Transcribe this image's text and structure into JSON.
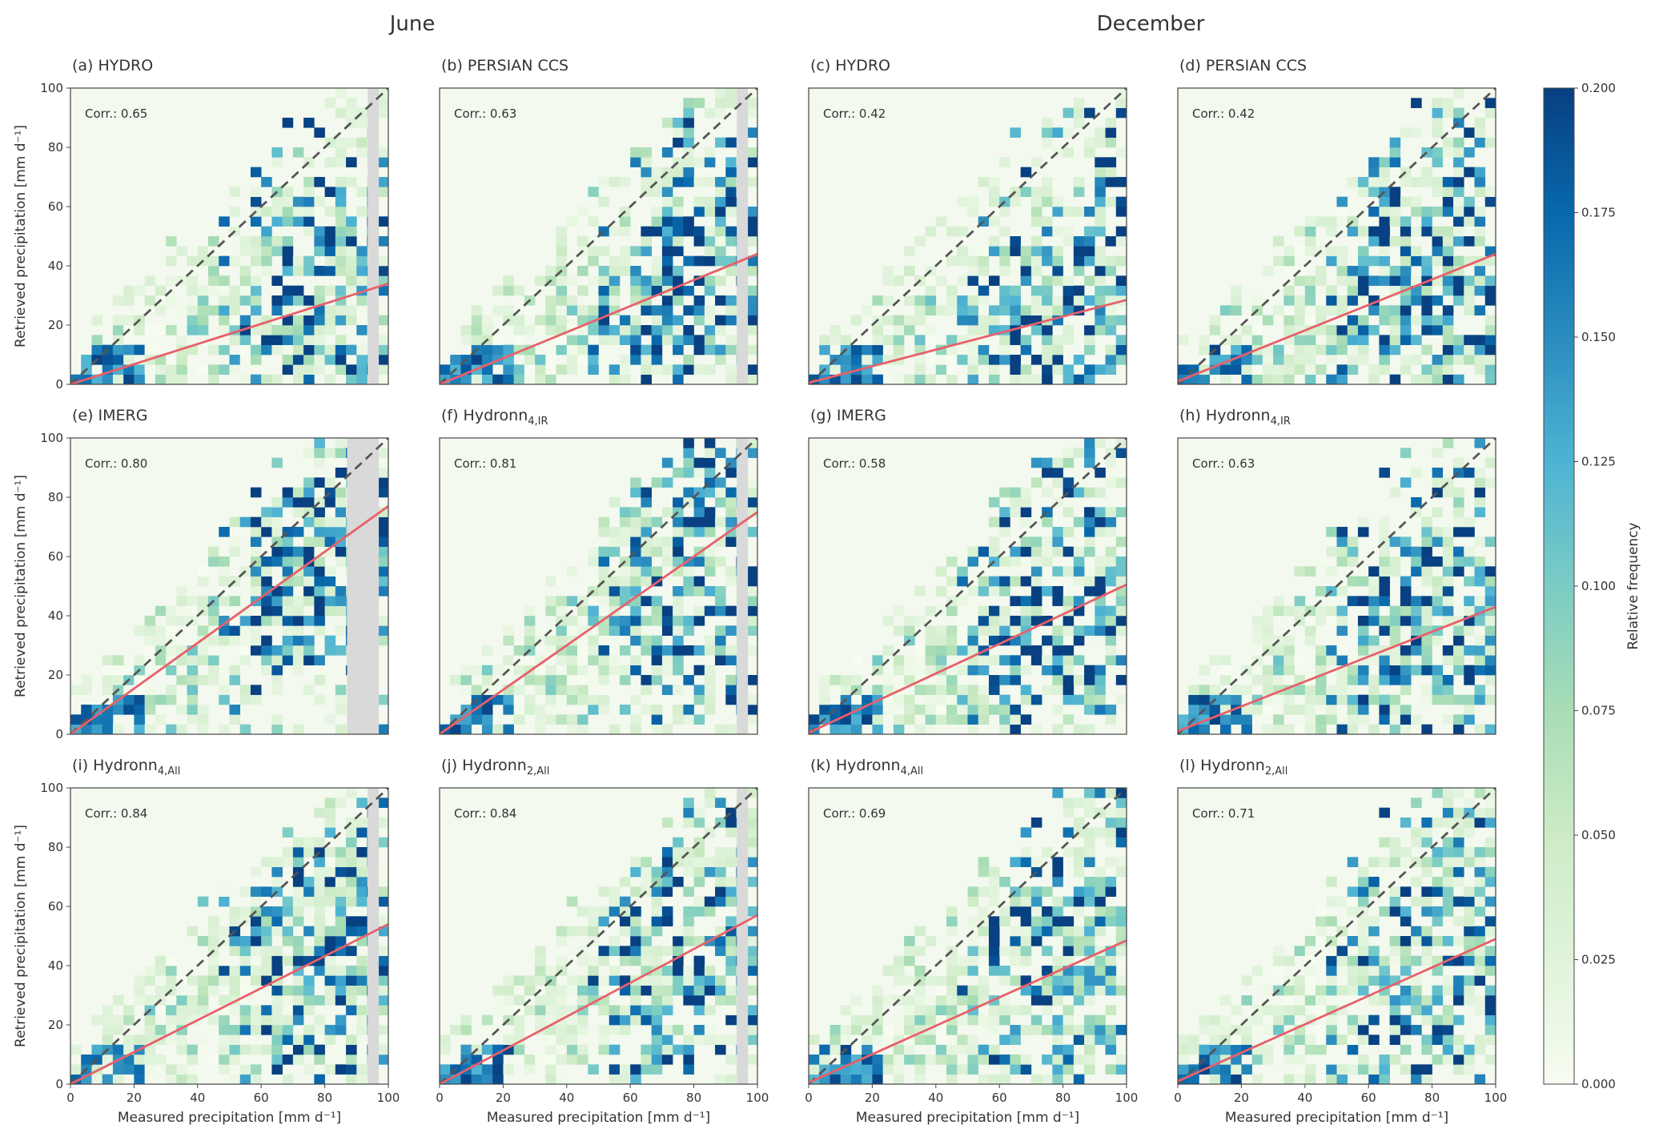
{
  "figure": {
    "column_groups": [
      {
        "title": "June"
      },
      {
        "title": "December"
      }
    ],
    "colorbar": {
      "label": "Relative frequency",
      "min": 0.0,
      "max": 0.2,
      "ticks": [
        "0.000",
        "0.025",
        "0.050",
        "0.075",
        "0.100",
        "0.125",
        "0.150",
        "0.175",
        "0.200"
      ],
      "colormap": [
        "#f7fcf0",
        "#e0f3db",
        "#ccebc5",
        "#a8ddb5",
        "#7bccc4",
        "#4eb3d3",
        "#2b8cbe",
        "#0868ac",
        "#084081"
      ]
    },
    "colors": {
      "fit_line": "#e8606a",
      "one_to_one_line": "#555555",
      "background_cell": "#f3f9ee",
      "no_data_band": "#d9d9d9",
      "frame": "#444444"
    }
  },
  "chart_data": [
    {
      "type": "heatmap",
      "panel": "(a)",
      "title_main": "HYDRO",
      "title_sub": "",
      "corr": "Corr.: 0.65",
      "fit_slope": 0.34,
      "fit_intercept": 0.0,
      "no_data_band": [
        93.5,
        97.0
      ],
      "ylabel": "Retrieved precipitation [mm d⁻¹]",
      "xlabel": "",
      "xlim": [
        0,
        100
      ],
      "ylim": [
        0,
        100
      ],
      "xticks": [],
      "yticks": [
        "0",
        "20",
        "40",
        "60",
        "80",
        "100"
      ]
    },
    {
      "type": "heatmap",
      "panel": "(b)",
      "title_main": "PERSIAN CCS",
      "title_sub": "",
      "corr": "Corr.: 0.63",
      "fit_slope": 0.44,
      "fit_intercept": 0.0,
      "no_data_band": [
        93.5,
        97.0
      ],
      "ylabel": "",
      "xlabel": "",
      "xlim": [
        0,
        100
      ],
      "ylim": [
        0,
        100
      ],
      "xticks": [],
      "yticks": []
    },
    {
      "type": "heatmap",
      "panel": "(c)",
      "title_main": "HYDRO",
      "title_sub": "",
      "corr": "Corr.: 0.42",
      "fit_slope": 0.28,
      "fit_intercept": 0.5,
      "no_data_band": null,
      "ylabel": "",
      "xlabel": "",
      "xlim": [
        0,
        100
      ],
      "ylim": [
        0,
        100
      ],
      "xticks": [],
      "yticks": []
    },
    {
      "type": "heatmap",
      "panel": "(d)",
      "title_main": "PERSIAN CCS",
      "title_sub": "",
      "corr": "Corr.: 0.42",
      "fit_slope": 0.43,
      "fit_intercept": 1.0,
      "no_data_band": null,
      "ylabel": "",
      "xlabel": "",
      "xlim": [
        0,
        100
      ],
      "ylim": [
        0,
        100
      ],
      "xticks": [],
      "yticks": []
    },
    {
      "type": "heatmap",
      "panel": "(e)",
      "title_main": "IMERG",
      "title_sub": "",
      "corr": "Corr.: 0.80",
      "fit_slope": 0.77,
      "fit_intercept": 0.0,
      "no_data_band": [
        87.0,
        97.0
      ],
      "ylabel": "Retrieved precipitation [mm d⁻¹]",
      "xlabel": "",
      "xlim": [
        0,
        100
      ],
      "ylim": [
        0,
        100
      ],
      "xticks": [],
      "yticks": [
        "0",
        "20",
        "40",
        "60",
        "80",
        "100"
      ]
    },
    {
      "type": "heatmap",
      "panel": "(f)",
      "title_main": "Hydronn",
      "title_sub": "4,IR",
      "corr": "Corr.: 0.81",
      "fit_slope": 0.75,
      "fit_intercept": 0.0,
      "no_data_band": [
        93.5,
        97.0
      ],
      "ylabel": "",
      "xlabel": "",
      "xlim": [
        0,
        100
      ],
      "ylim": [
        0,
        100
      ],
      "xticks": [],
      "yticks": []
    },
    {
      "type": "heatmap",
      "panel": "(g)",
      "title_main": "IMERG",
      "title_sub": "",
      "corr": "Corr.: 0.58",
      "fit_slope": 0.5,
      "fit_intercept": 0.5,
      "no_data_band": null,
      "ylabel": "",
      "xlabel": "",
      "xlim": [
        0,
        100
      ],
      "ylim": [
        0,
        100
      ],
      "xticks": [],
      "yticks": []
    },
    {
      "type": "heatmap",
      "panel": "(h)",
      "title_main": "Hydronn",
      "title_sub": "4,IR",
      "corr": "Corr.: 0.63",
      "fit_slope": 0.42,
      "fit_intercept": 1.0,
      "no_data_band": null,
      "ylabel": "",
      "xlabel": "",
      "xlim": [
        0,
        100
      ],
      "ylim": [
        0,
        100
      ],
      "xticks": [],
      "yticks": []
    },
    {
      "type": "heatmap",
      "panel": "(i)",
      "title_main": "Hydronn",
      "title_sub": "4,All",
      "corr": "Corr.: 0.84",
      "fit_slope": 0.54,
      "fit_intercept": 0.0,
      "no_data_band": [
        93.5,
        97.0
      ],
      "ylabel": "Retrieved precipitation [mm d⁻¹]",
      "xlabel": "Measured precipitation [mm d⁻¹]",
      "xlim": [
        0,
        100
      ],
      "ylim": [
        0,
        100
      ],
      "xticks": [
        "0",
        "20",
        "40",
        "60",
        "80",
        "100"
      ],
      "yticks": [
        "0",
        "20",
        "40",
        "60",
        "80",
        "100"
      ]
    },
    {
      "type": "heatmap",
      "panel": "(j)",
      "title_main": "Hydronn",
      "title_sub": "2,All",
      "corr": "Corr.: 0.84",
      "fit_slope": 0.57,
      "fit_intercept": 0.0,
      "no_data_band": [
        93.5,
        97.0
      ],
      "ylabel": "",
      "xlabel": "Measured precipitation [mm d⁻¹]",
      "xlim": [
        0,
        100
      ],
      "ylim": [
        0,
        100
      ],
      "xticks": [
        "0",
        "20",
        "40",
        "60",
        "80",
        "100"
      ],
      "yticks": []
    },
    {
      "type": "heatmap",
      "panel": "(k)",
      "title_main": "Hydronn",
      "title_sub": "4,All",
      "corr": "Corr.: 0.69",
      "fit_slope": 0.48,
      "fit_intercept": 0.5,
      "no_data_band": null,
      "ylabel": "",
      "xlabel": "Measured precipitation [mm d⁻¹]",
      "xlim": [
        0,
        100
      ],
      "ylim": [
        0,
        100
      ],
      "xticks": [
        "0",
        "20",
        "40",
        "60",
        "80",
        "100"
      ],
      "yticks": []
    },
    {
      "type": "heatmap",
      "panel": "(l)",
      "title_main": "Hydronn",
      "title_sub": "2,All",
      "corr": "Corr.: 0.71",
      "fit_slope": 0.48,
      "fit_intercept": 1.0,
      "no_data_band": null,
      "ylabel": "",
      "xlabel": "Measured precipitation [mm d⁻¹]",
      "xlim": [
        0,
        100
      ],
      "ylim": [
        0,
        100
      ],
      "xticks": [
        "0",
        "20",
        "40",
        "60",
        "80",
        "100"
      ],
      "yticks": []
    }
  ]
}
